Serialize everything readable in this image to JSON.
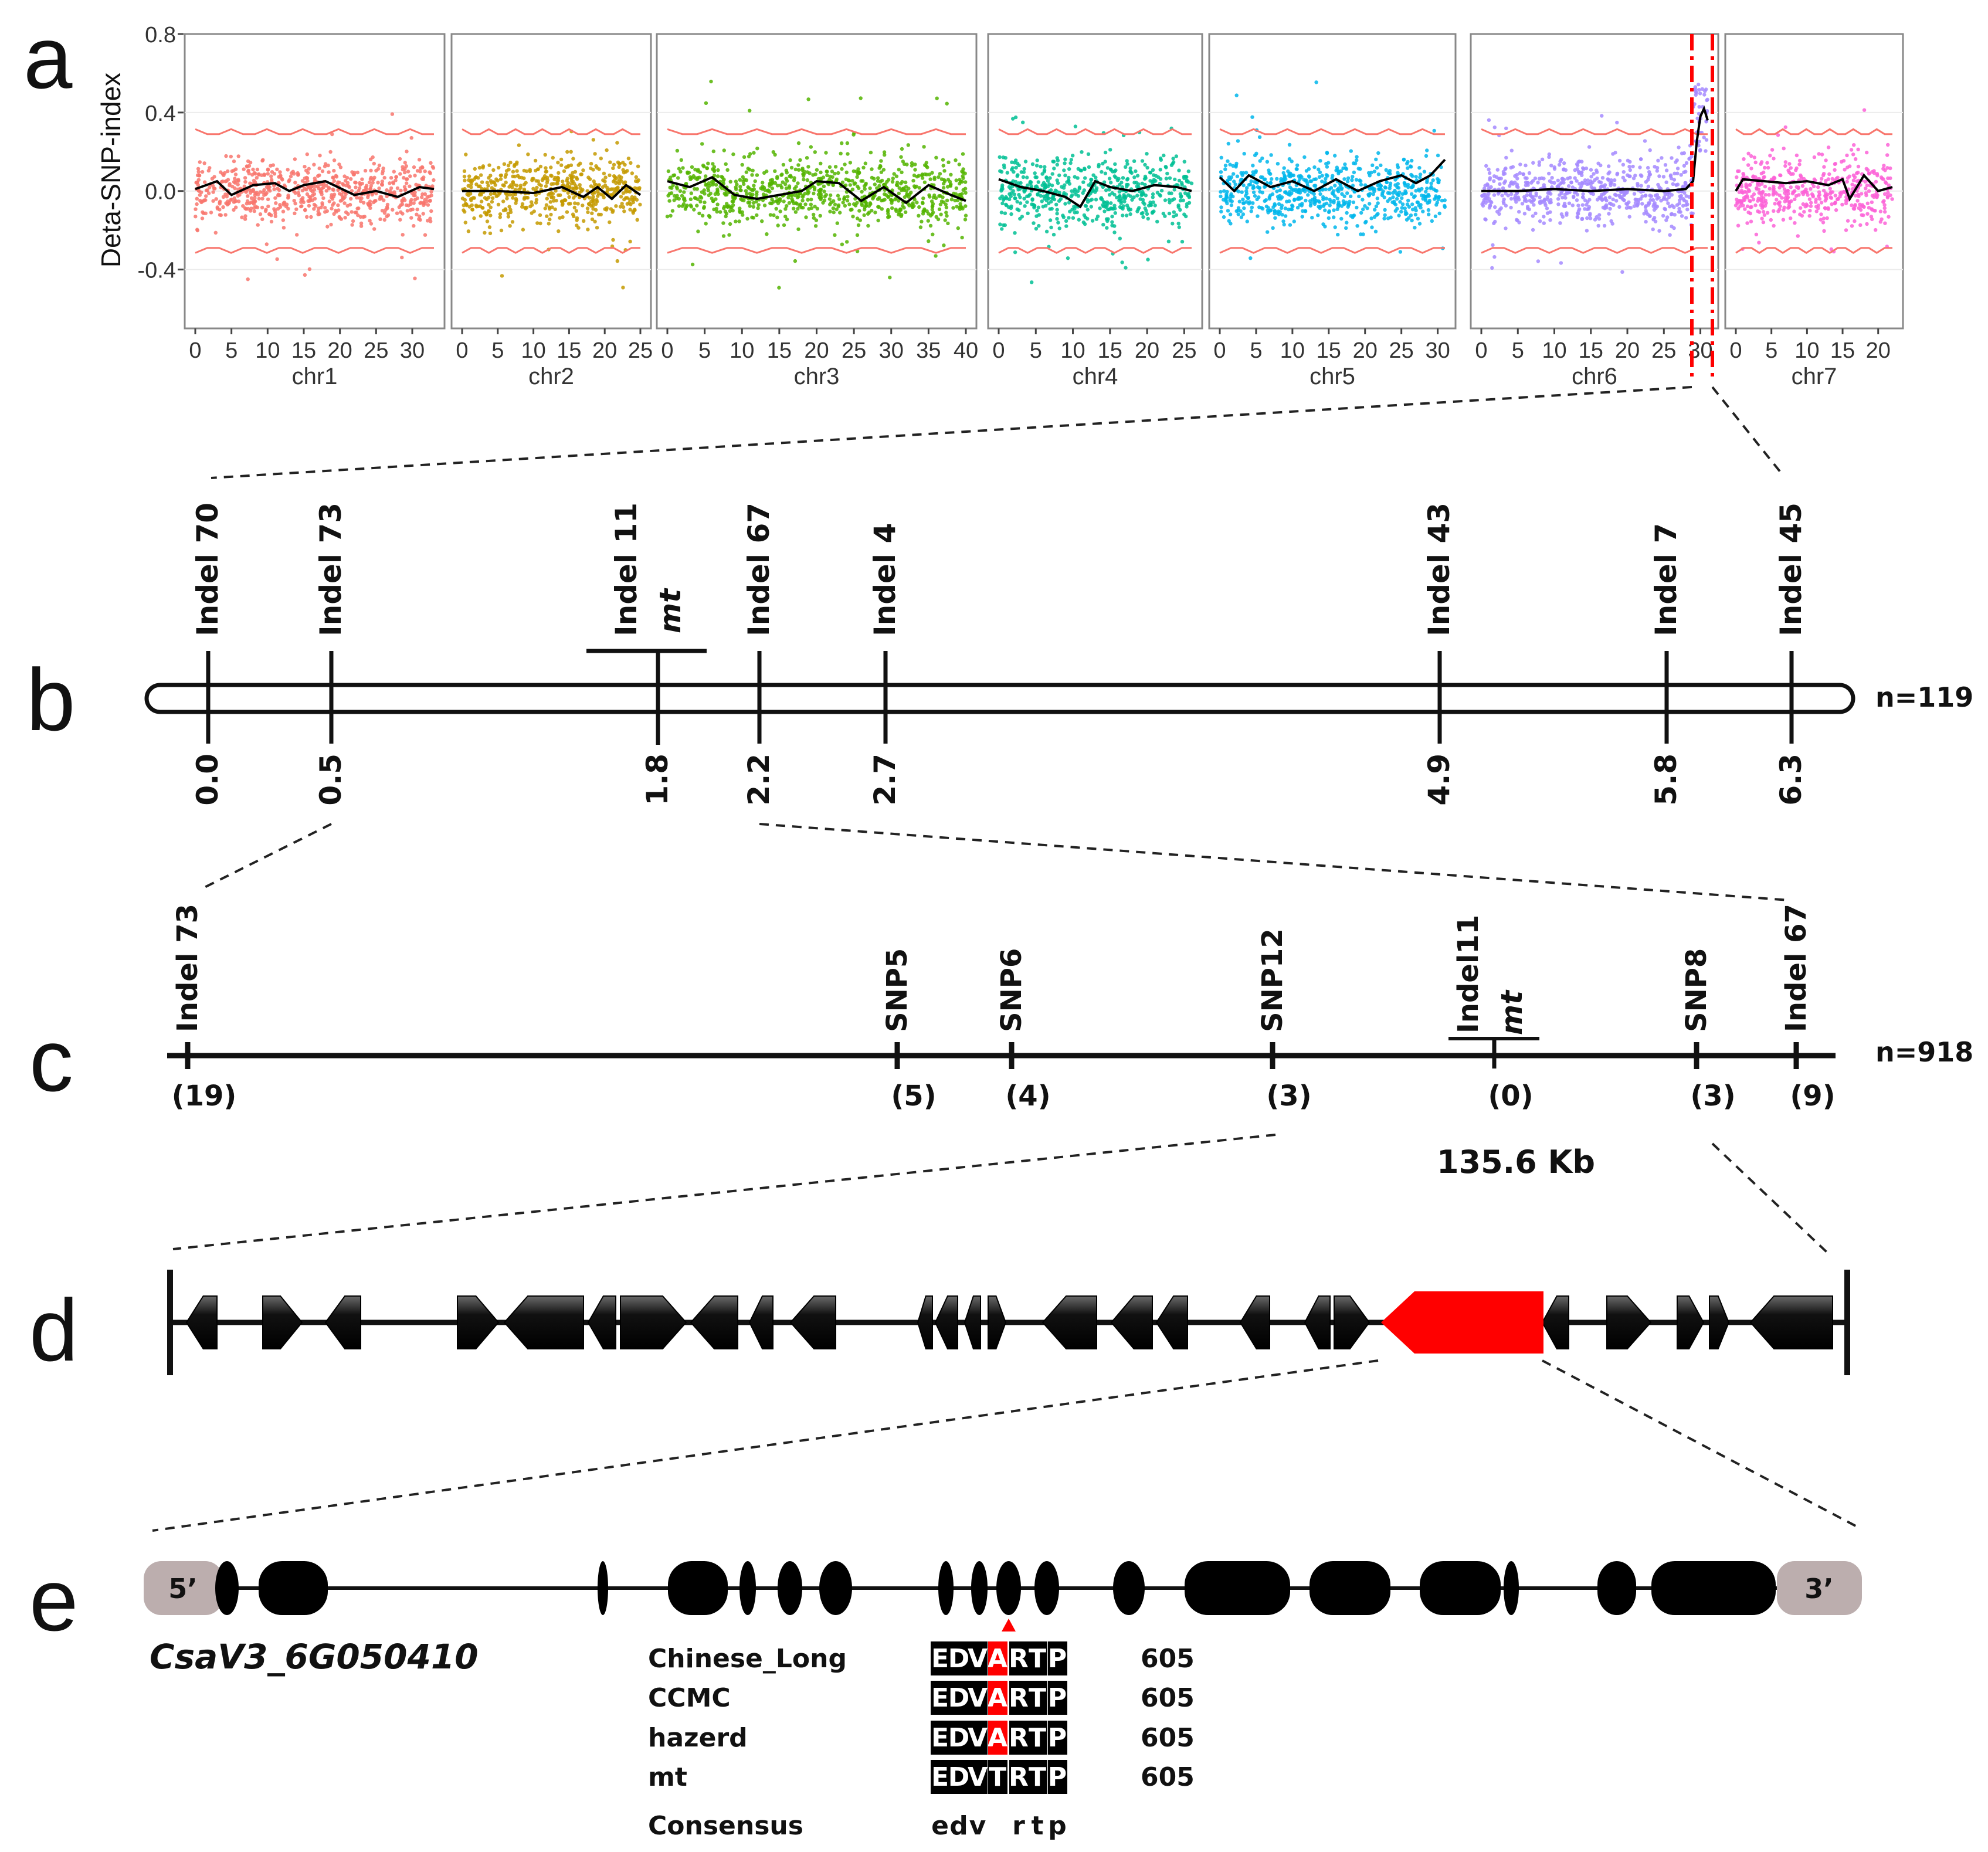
{
  "colors": {
    "chr1": "#F8766D",
    "chr2": "#C49A00",
    "chr3": "#53B400",
    "chr4": "#00C094",
    "chr5": "#00B6EB",
    "chr6": "#A58AFF",
    "chr7": "#FB61D7",
    "threshold": "#F8766D",
    "highlight": "#FF0000",
    "uorf": "#BCAEAE"
  },
  "panel_a": {
    "letter": "a",
    "chart_data": {
      "type": "scatter",
      "title": "",
      "ylabel": "Deta-SNP-index",
      "ylim": [
        -0.7,
        0.8
      ],
      "yticks": [
        "0.8",
        "0.4",
        "0.0",
        "-0.4"
      ],
      "threshold": [
        0.3,
        -0.3
      ],
      "facets": [
        {
          "name": "chr1",
          "xmax": 33,
          "xticks": [
            "0",
            "5",
            "10",
            "15",
            "20",
            "25",
            "30"
          ],
          "trend": [
            [
              0,
              0.01
            ],
            [
              3,
              0.05
            ],
            [
              5,
              -0.02
            ],
            [
              8,
              0.03
            ],
            [
              11,
              0.04
            ],
            [
              13,
              0.0
            ],
            [
              15,
              0.03
            ],
            [
              18,
              0.05
            ],
            [
              22,
              -0.02
            ],
            [
              25,
              0.0
            ],
            [
              28,
              -0.03
            ],
            [
              31,
              0.02
            ],
            [
              33,
              0.01
            ]
          ]
        },
        {
          "name": "chr2",
          "xmax": 25,
          "xticks": [
            "0",
            "5",
            "10",
            "15",
            "20",
            "25"
          ],
          "trend": [
            [
              0,
              0.0
            ],
            [
              5,
              0.0
            ],
            [
              10,
              -0.01
            ],
            [
              14,
              0.02
            ],
            [
              17,
              -0.03
            ],
            [
              19,
              0.02
            ],
            [
              21,
              -0.04
            ],
            [
              23,
              0.03
            ],
            [
              25,
              -0.02
            ]
          ]
        },
        {
          "name": "chr3",
          "xmax": 40,
          "xticks": [
            "0",
            "5",
            "10",
            "15",
            "20",
            "25",
            "30",
            "35",
            "40"
          ],
          "trend": [
            [
              0,
              0.05
            ],
            [
              3,
              0.02
            ],
            [
              6,
              0.07
            ],
            [
              9,
              -0.02
            ],
            [
              12,
              -0.04
            ],
            [
              15,
              -0.02
            ],
            [
              18,
              0.0
            ],
            [
              20,
              0.05
            ],
            [
              23,
              0.04
            ],
            [
              26,
              -0.05
            ],
            [
              29,
              0.02
            ],
            [
              32,
              -0.06
            ],
            [
              35,
              0.03
            ],
            [
              38,
              -0.02
            ],
            [
              40,
              -0.05
            ]
          ]
        },
        {
          "name": "chr4",
          "xmax": 26,
          "xticks": [
            "0",
            "5",
            "10",
            "15",
            "20",
            "25"
          ],
          "trend": [
            [
              0,
              0.06
            ],
            [
              3,
              0.02
            ],
            [
              6,
              0.0
            ],
            [
              9,
              -0.03
            ],
            [
              11,
              -0.08
            ],
            [
              13,
              0.05
            ],
            [
              15,
              0.02
            ],
            [
              18,
              0.0
            ],
            [
              21,
              0.03
            ],
            [
              24,
              0.02
            ],
            [
              26,
              0.0
            ]
          ]
        },
        {
          "name": "chr5",
          "xmax": 31,
          "xticks": [
            "0",
            "5",
            "10",
            "15",
            "20",
            "25",
            "30"
          ],
          "trend": [
            [
              0,
              0.07
            ],
            [
              2,
              0.0
            ],
            [
              4,
              0.08
            ],
            [
              7,
              0.02
            ],
            [
              10,
              0.05
            ],
            [
              13,
              0.0
            ],
            [
              16,
              0.06
            ],
            [
              19,
              0.0
            ],
            [
              22,
              0.05
            ],
            [
              25,
              0.08
            ],
            [
              27,
              0.04
            ],
            [
              29,
              0.08
            ],
            [
              31,
              0.16
            ]
          ]
        },
        {
          "name": "chr6",
          "xmax": 31,
          "xticks": [
            "0",
            "5",
            "10",
            "15",
            "20",
            "25",
            "30"
          ],
          "trend": [
            [
              0,
              0.0
            ],
            [
              5,
              0.0
            ],
            [
              10,
              0.01
            ],
            [
              15,
              0.0
            ],
            [
              20,
              0.01
            ],
            [
              25,
              0.0
            ],
            [
              28,
              0.01
            ],
            [
              29,
              0.05
            ],
            [
              29.5,
              0.25
            ],
            [
              30,
              0.38
            ],
            [
              30.5,
              0.42
            ],
            [
              31,
              0.36
            ]
          ]
        },
        {
          "name": "chr7",
          "xmax": 22,
          "xticks": [
            "0",
            "5",
            "10",
            "15",
            "20"
          ],
          "trend": [
            [
              0,
              0.0
            ],
            [
              1,
              0.06
            ],
            [
              4,
              0.05
            ],
            [
              7,
              0.04
            ],
            [
              10,
              0.05
            ],
            [
              13,
              0.03
            ],
            [
              15,
              0.06
            ],
            [
              16,
              -0.04
            ],
            [
              18,
              0.08
            ],
            [
              20,
              0.0
            ],
            [
              22,
              0.02
            ]
          ]
        }
      ]
    }
  },
  "panel_b": {
    "letter": "b",
    "n": "n=119",
    "markers": [
      {
        "name": "Indel 70",
        "pos": "0.0"
      },
      {
        "name": "Indel 73",
        "pos": "0.5"
      },
      {
        "name": "Indel 11",
        "pos": "1.8"
      },
      {
        "name": "Indel 67",
        "pos": "2.2"
      },
      {
        "name": "Indel 4",
        "pos": "2.7"
      },
      {
        "name": "Indel 43",
        "pos": "4.9"
      },
      {
        "name": "Indel 7",
        "pos": "5.8"
      },
      {
        "name": "Indel 45",
        "pos": "6.3"
      }
    ],
    "mt": "mt"
  },
  "panel_c": {
    "letter": "c",
    "n": "n=918",
    "markers": [
      {
        "name": "Indel 73",
        "rec": "(19)"
      },
      {
        "name": "SNP5",
        "rec": "(5)"
      },
      {
        "name": "SNP6",
        "rec": "(4)"
      },
      {
        "name": "SNP12",
        "rec": "(3)"
      },
      {
        "name": "Indel11",
        "rec": "(0)"
      },
      {
        "name": "SNP8",
        "rec": "(3)"
      },
      {
        "name": "Indel 67",
        "rec": "(9)"
      }
    ],
    "mt": "mt",
    "interval": "135.6 Kb"
  },
  "panel_d": {
    "letter": "d"
  },
  "panel_e": {
    "letter": "e",
    "five_prime": "5’",
    "three_prime": "3’",
    "gene": "CsaV3_6G050410",
    "alignment": [
      {
        "name": "Chinese_Long",
        "seq": [
          "E",
          "D",
          "V",
          "A",
          "R",
          "T",
          "P"
        ],
        "num": "605"
      },
      {
        "name": "CCMC",
        "seq": [
          "E",
          "D",
          "V",
          "A",
          "R",
          "T",
          "P"
        ],
        "num": "605"
      },
      {
        "name": "hazerd",
        "seq": [
          "E",
          "D",
          "V",
          "A",
          "R",
          "T",
          "P"
        ],
        "num": "605"
      },
      {
        "name": "mt",
        "seq": [
          "E",
          "D",
          "V",
          "T",
          "R",
          "T",
          "P"
        ],
        "num": "605"
      }
    ],
    "consensus_label": "Consensus",
    "consensus": "edv  rtp"
  }
}
